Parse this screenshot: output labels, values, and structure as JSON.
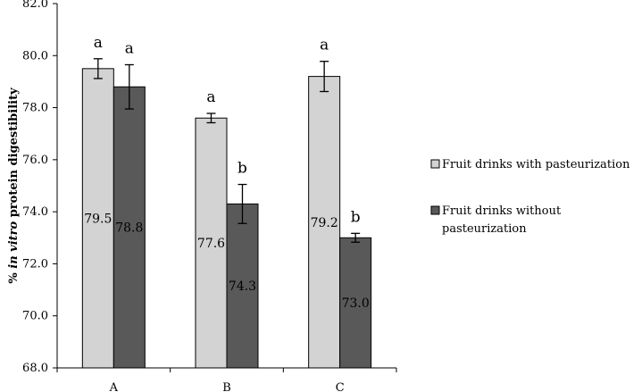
{
  "chart_data": {
    "type": "bar",
    "title": "",
    "xlabel": "",
    "ylabel_parts": [
      "% ",
      "in vitro",
      " protein digestibility"
    ],
    "ylim": [
      68,
      82
    ],
    "yticks": [
      "68.0",
      "70.0",
      "72.0",
      "74.0",
      "76.0",
      "78.0",
      "80.0",
      "82.0"
    ],
    "categories": [
      "A",
      "B",
      "C"
    ],
    "series": [
      {
        "name": "Fruit drinks with pasteurization",
        "color": "#d3d3d3",
        "values": [
          79.5,
          77.6,
          79.2
        ],
        "labels": [
          "79.5",
          "77.6",
          "79.2"
        ],
        "errors": [
          0.38,
          0.18,
          0.58
        ],
        "letters": [
          "a",
          "a",
          "a"
        ]
      },
      {
        "name": "Fruit drinks without pasteurization",
        "name_lines": [
          "Fruit drinks without",
          "pasteurization"
        ],
        "color": "#595959",
        "values": [
          78.8,
          74.3,
          73.0
        ],
        "labels": [
          "78.8",
          "74.3",
          "73.0"
        ],
        "errors": [
          0.85,
          0.75,
          0.17
        ],
        "letters": [
          "a",
          "b",
          "b"
        ]
      }
    ],
    "grid": false,
    "legend": "right"
  }
}
